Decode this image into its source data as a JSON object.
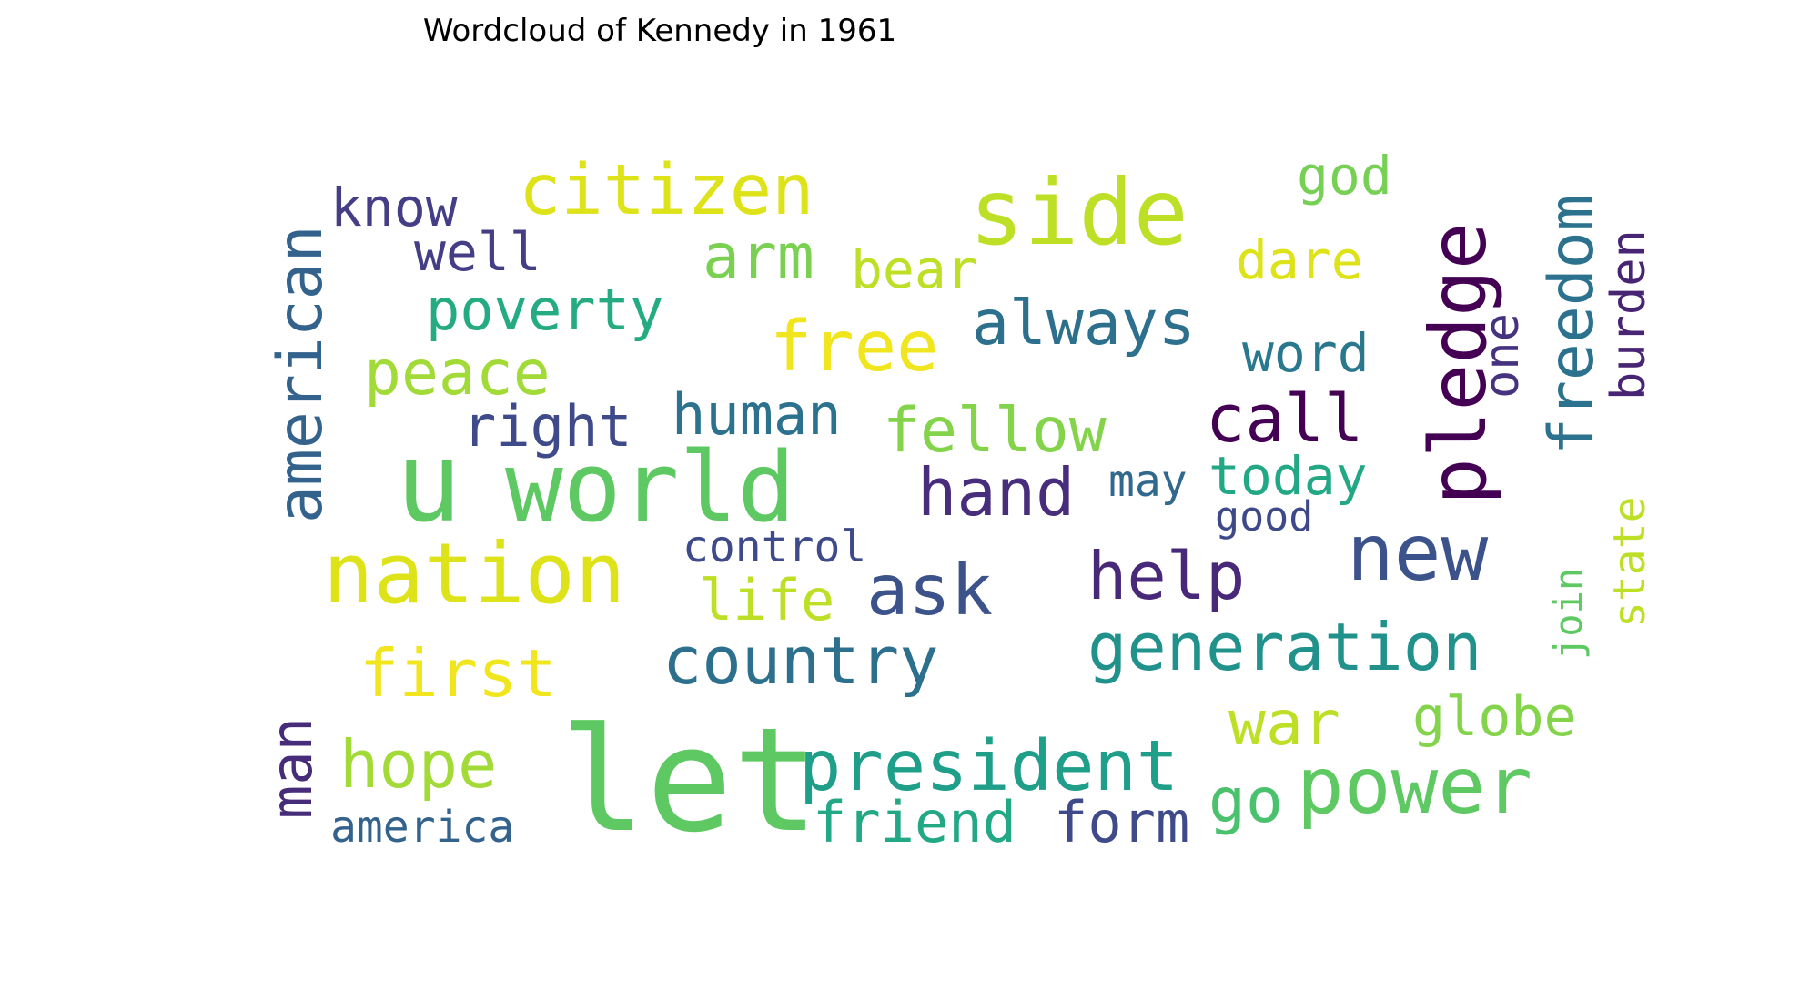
{
  "chart_data": {
    "type": "wordcloud",
    "title": "Wordcloud of Kennedy in 1961",
    "words": [
      {
        "text": "let",
        "color": "#5ec962"
      },
      {
        "text": "u",
        "color": "#5ec962"
      },
      {
        "text": "world",
        "color": "#5ec962"
      },
      {
        "text": "side",
        "color": "#bddf26"
      },
      {
        "text": "nation",
        "color": "#dde318"
      },
      {
        "text": "pledge",
        "color": "#440154"
      },
      {
        "text": "power",
        "color": "#5ec962"
      },
      {
        "text": "new",
        "color": "#3b528b"
      },
      {
        "text": "american",
        "color": "#33638d"
      },
      {
        "text": "citizen",
        "color": "#dde318"
      },
      {
        "text": "president",
        "color": "#1f9e89"
      },
      {
        "text": "free",
        "color": "#f1e51d"
      },
      {
        "text": "country",
        "color": "#2d708e"
      },
      {
        "text": "generation",
        "color": "#21918c"
      },
      {
        "text": "freedom",
        "color": "#2c728e"
      },
      {
        "text": "ask",
        "color": "#3b528b"
      },
      {
        "text": "help",
        "color": "#482878"
      },
      {
        "text": "hand",
        "color": "#472d7b"
      },
      {
        "text": "always",
        "color": "#2d708e"
      },
      {
        "text": "fellow",
        "color": "#84d44b"
      },
      {
        "text": "call",
        "color": "#440154"
      },
      {
        "text": "first",
        "color": "#f1e51d"
      },
      {
        "text": "hope",
        "color": "#a2da37"
      },
      {
        "text": "man",
        "color": "#472c7a"
      },
      {
        "text": "peace",
        "color": "#a2da37"
      },
      {
        "text": "arm",
        "color": "#7ad151"
      },
      {
        "text": "human",
        "color": "#2c728e"
      },
      {
        "text": "right",
        "color": "#3e4a89"
      },
      {
        "text": "poverty",
        "color": "#25ab82"
      },
      {
        "text": "know",
        "color": "#433e85"
      },
      {
        "text": "well",
        "color": "#433e85"
      },
      {
        "text": "bear",
        "color": "#bddf26"
      },
      {
        "text": "burden",
        "color": "#482475"
      },
      {
        "text": "word",
        "color": "#2a788e"
      },
      {
        "text": "dare",
        "color": "#dde318"
      },
      {
        "text": "god",
        "color": "#75d054"
      },
      {
        "text": "one",
        "color": "#46337f"
      },
      {
        "text": "today",
        "color": "#22a884"
      },
      {
        "text": "may",
        "color": "#31688e"
      },
      {
        "text": "good",
        "color": "#3e4989"
      },
      {
        "text": "state",
        "color": "#bddf26"
      },
      {
        "text": "war",
        "color": "#bddf26"
      },
      {
        "text": "globe",
        "color": "#84d44b"
      },
      {
        "text": "go",
        "color": "#4ac16d"
      },
      {
        "text": "friend",
        "color": "#22a884"
      },
      {
        "text": "form",
        "color": "#3e4a89"
      },
      {
        "text": "control",
        "color": "#3e4a89"
      },
      {
        "text": "life",
        "color": "#bddf26"
      },
      {
        "text": "join",
        "color": "#5ec962"
      },
      {
        "text": "america",
        "color": "#33638d"
      }
    ]
  }
}
